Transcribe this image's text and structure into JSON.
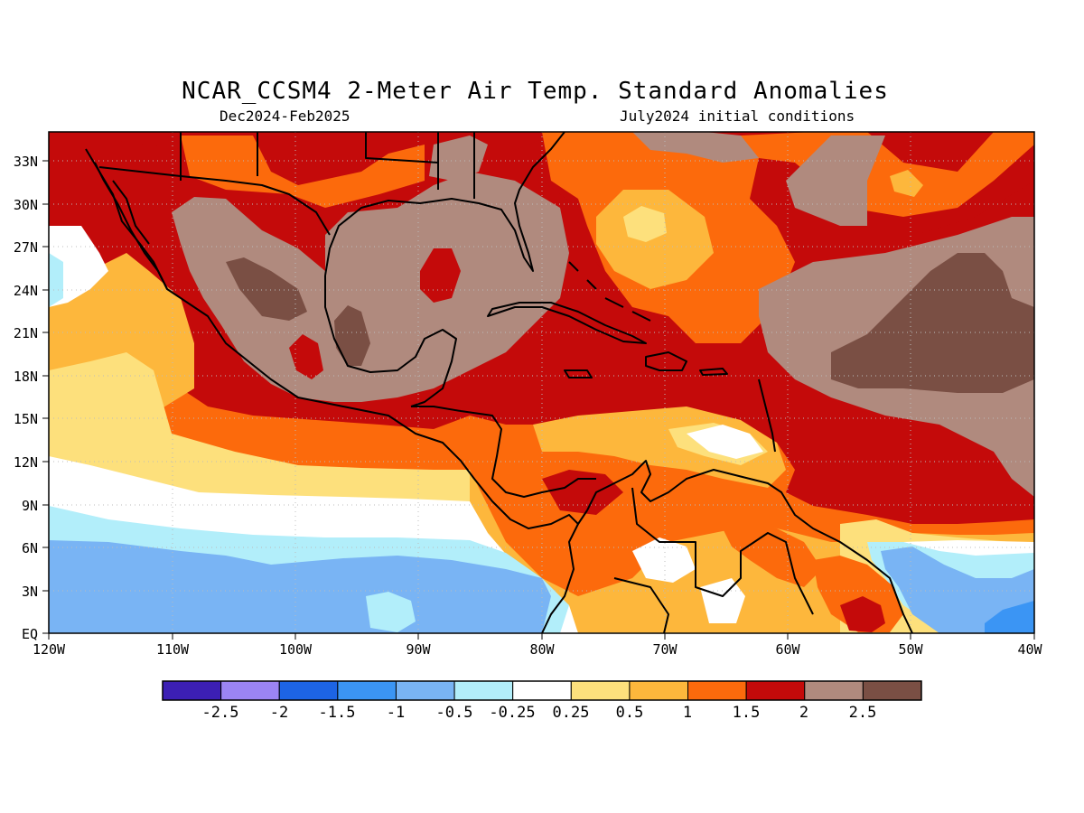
{
  "header": {
    "title": "NCAR_CCSM4 2-Meter Air Temp. Standard Anomalies",
    "period": "Dec2024-Feb2025",
    "init": "July2024 initial conditions"
  },
  "axes": {
    "lat_labels": [
      "33N",
      "30N",
      "27N",
      "24N",
      "21N",
      "18N",
      "15N",
      "12N",
      "9N",
      "6N",
      "3N",
      "EQ"
    ],
    "lon_labels": [
      "120W",
      "110W",
      "100W",
      "90W",
      "80W",
      "70W",
      "60W",
      "50W",
      "40W"
    ]
  },
  "legend": {
    "labels": [
      "-2.5",
      "-2",
      "-1.5",
      "-1",
      "-0.5",
      "-0.25",
      "0.25",
      "0.5",
      "1",
      "1.5",
      "2",
      "2.5"
    ],
    "colors": [
      "#3c1fb4",
      "#9b84f4",
      "#1d64e4",
      "#3b95f4",
      "#79b4f4",
      "#b2eefa",
      "#ffffff",
      "#fde07c",
      "#fdb73c",
      "#fc6a0c",
      "#c40a0a",
      "#b08a7e",
      "#7a4f44"
    ]
  },
  "map": {
    "region": "Gulf of Mexico / Caribbean / Central America",
    "lon_range": [
      "120W",
      "40W"
    ],
    "lat_range": [
      "EQ",
      "35N"
    ],
    "grid": "dotted"
  }
}
